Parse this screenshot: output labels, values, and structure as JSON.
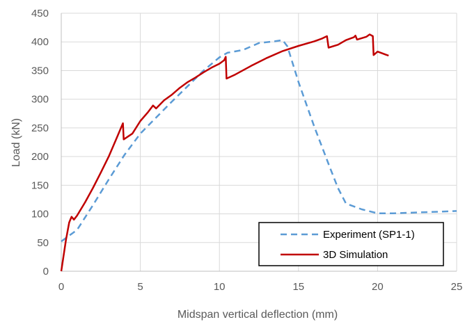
{
  "chart_data": {
    "type": "line",
    "title": "",
    "xlabel": "Midspan vertical deflection (mm)",
    "ylabel": "Load (kN)",
    "xlim": [
      0,
      25
    ],
    "ylim": [
      0,
      450
    ],
    "xticks": [
      0,
      5,
      10,
      15,
      20,
      25
    ],
    "yticks": [
      0,
      50,
      100,
      150,
      200,
      250,
      300,
      350,
      400,
      450
    ],
    "grid": true,
    "legend_position": "bottom-right",
    "series": [
      {
        "name": "Experiment (SP1-1)",
        "color": "#5B9BD5",
        "style": "dashed",
        "points": [
          [
            0,
            52
          ],
          [
            1,
            72
          ],
          [
            2,
            115
          ],
          [
            3,
            160
          ],
          [
            4,
            203
          ],
          [
            5,
            240
          ],
          [
            6,
            268
          ],
          [
            7,
            296
          ],
          [
            8,
            323
          ],
          [
            9,
            350
          ],
          [
            10,
            373
          ],
          [
            10.5,
            381
          ],
          [
            11.5,
            386
          ],
          [
            12.5,
            398
          ],
          [
            13.5,
            401
          ],
          [
            14,
            403
          ],
          [
            14.3,
            392
          ],
          [
            15,
            330
          ],
          [
            16,
            252
          ],
          [
            17,
            180
          ],
          [
            17.5,
            145
          ],
          [
            18,
            118
          ],
          [
            19,
            108
          ],
          [
            20,
            101
          ],
          [
            21,
            101
          ],
          [
            22,
            102
          ],
          [
            23,
            103
          ],
          [
            24,
            104
          ],
          [
            25,
            105
          ]
        ]
      },
      {
        "name": "3D Simulation",
        "color": "#C00000",
        "style": "solid",
        "points": [
          [
            0,
            0
          ],
          [
            0.3,
            55
          ],
          [
            0.5,
            85
          ],
          [
            0.65,
            95
          ],
          [
            0.8,
            90
          ],
          [
            1,
            97
          ],
          [
            1.5,
            120
          ],
          [
            2,
            145
          ],
          [
            2.5,
            172
          ],
          [
            3,
            200
          ],
          [
            3.5,
            232
          ],
          [
            3.9,
            258
          ],
          [
            3.95,
            230
          ],
          [
            4.5,
            240
          ],
          [
            5,
            262
          ],
          [
            5.5,
            278
          ],
          [
            5.8,
            289
          ],
          [
            6,
            284
          ],
          [
            6.5,
            298
          ],
          [
            7,
            308
          ],
          [
            7.5,
            320
          ],
          [
            8,
            330
          ],
          [
            8.5,
            338
          ],
          [
            9,
            347
          ],
          [
            9.5,
            355
          ],
          [
            10,
            362
          ],
          [
            10.3,
            368
          ],
          [
            10.4,
            374
          ],
          [
            10.45,
            336
          ],
          [
            11,
            343
          ],
          [
            12,
            358
          ],
          [
            13,
            372
          ],
          [
            14,
            384
          ],
          [
            15,
            393
          ],
          [
            16,
            401
          ],
          [
            16.5,
            406
          ],
          [
            16.8,
            410
          ],
          [
            16.9,
            390
          ],
          [
            17.5,
            395
          ],
          [
            18,
            403
          ],
          [
            18.5,
            408
          ],
          [
            18.6,
            411
          ],
          [
            18.7,
            404
          ],
          [
            19.3,
            409
          ],
          [
            19.5,
            413
          ],
          [
            19.7,
            410
          ],
          [
            19.75,
            377
          ],
          [
            20,
            383
          ],
          [
            20.3,
            380
          ],
          [
            20.5,
            378
          ],
          [
            20.7,
            376
          ]
        ]
      }
    ]
  }
}
